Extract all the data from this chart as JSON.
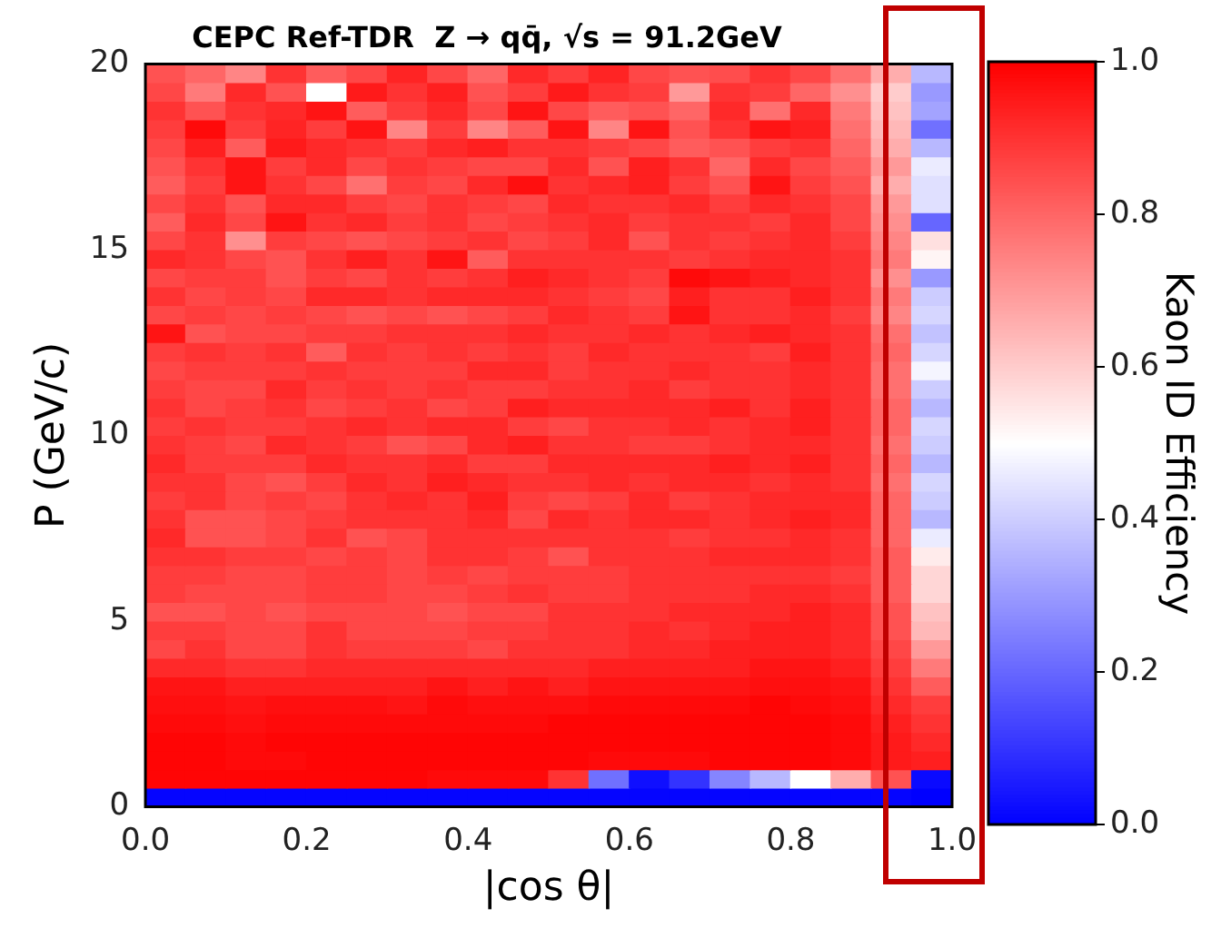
{
  "chart_data": {
    "type": "heatmap",
    "title": "CEPC Ref-TDR  Z → qq̄, √s = 91.2GeV",
    "xlabel": "|cos θ|",
    "ylabel": "P (GeV/c)",
    "clabel": "Kaon ID Efficiency",
    "xlim": [
      0,
      1
    ],
    "xticks": [
      {
        "value": 0,
        "label": "0.0"
      },
      {
        "value": 0.2,
        "label": "0.2"
      },
      {
        "value": 0.4,
        "label": "0.4"
      },
      {
        "value": 0.6,
        "label": "0.6"
      },
      {
        "value": 0.8,
        "label": "0.8"
      },
      {
        "value": 1,
        "label": "1.0"
      }
    ],
    "ylim": [
      0,
      20
    ],
    "yticks": [
      0,
      5,
      10,
      15,
      20
    ],
    "clim": [
      0,
      1
    ],
    "cticks": [
      {
        "value": 0,
        "label": "0.0"
      },
      {
        "value": 0.2,
        "label": "0.2"
      },
      {
        "value": 0.4,
        "label": "0.4"
      },
      {
        "value": 0.6,
        "label": "0.6"
      },
      {
        "value": 0.8,
        "label": "0.8"
      },
      {
        "value": 1,
        "label": "1.0"
      }
    ],
    "cells": [
      [
        0.84,
        0.8,
        0.74,
        0.9,
        0.82,
        0.86,
        0.93,
        0.86,
        0.8,
        0.92,
        0.88,
        0.93,
        0.86,
        0.84,
        0.85,
        0.9,
        0.86,
        0.78,
        0.66,
        0.36
      ],
      [
        0.86,
        0.76,
        0.92,
        0.84,
        0.5,
        0.95,
        0.9,
        0.94,
        0.84,
        0.88,
        0.95,
        0.9,
        0.88,
        0.7,
        0.9,
        0.88,
        0.8,
        0.72,
        0.6,
        0.3
      ],
      [
        0.9,
        0.84,
        0.9,
        0.92,
        0.96,
        0.82,
        0.88,
        0.92,
        0.86,
        0.96,
        0.86,
        0.82,
        0.84,
        0.8,
        0.92,
        0.78,
        0.92,
        0.76,
        0.62,
        0.32
      ],
      [
        0.88,
        0.98,
        0.88,
        0.93,
        0.88,
        0.96,
        0.74,
        0.88,
        0.74,
        0.82,
        0.96,
        0.74,
        0.96,
        0.84,
        0.9,
        0.96,
        0.94,
        0.78,
        0.64,
        0.22
      ],
      [
        0.86,
        0.94,
        0.82,
        0.95,
        0.92,
        0.9,
        0.88,
        0.92,
        0.94,
        0.9,
        0.9,
        0.88,
        0.86,
        0.82,
        0.84,
        0.88,
        0.9,
        0.8,
        0.66,
        0.36
      ],
      [
        0.84,
        0.9,
        0.96,
        0.88,
        0.92,
        0.86,
        0.9,
        0.88,
        0.86,
        0.86,
        0.92,
        0.84,
        0.94,
        0.9,
        0.8,
        0.92,
        0.86,
        0.82,
        0.7,
        0.46
      ],
      [
        0.82,
        0.88,
        0.96,
        0.9,
        0.86,
        0.78,
        0.88,
        0.86,
        0.92,
        0.97,
        0.9,
        0.92,
        0.94,
        0.88,
        0.84,
        0.96,
        0.88,
        0.84,
        0.66,
        0.44
      ],
      [
        0.86,
        0.9,
        0.84,
        0.92,
        0.92,
        0.88,
        0.86,
        0.9,
        0.88,
        0.86,
        0.92,
        0.9,
        0.9,
        0.92,
        0.88,
        0.92,
        0.9,
        0.86,
        0.7,
        0.44
      ],
      [
        0.82,
        0.92,
        0.86,
        0.96,
        0.9,
        0.92,
        0.88,
        0.9,
        0.86,
        0.88,
        0.9,
        0.92,
        0.88,
        0.9,
        0.9,
        0.88,
        0.92,
        0.86,
        0.72,
        0.2
      ],
      [
        0.86,
        0.9,
        0.72,
        0.88,
        0.86,
        0.84,
        0.86,
        0.88,
        0.9,
        0.86,
        0.88,
        0.92,
        0.84,
        0.9,
        0.88,
        0.9,
        0.92,
        0.88,
        0.74,
        0.56
      ],
      [
        0.92,
        0.9,
        0.86,
        0.84,
        0.9,
        0.94,
        0.9,
        0.96,
        0.82,
        0.9,
        0.9,
        0.9,
        0.9,
        0.88,
        0.9,
        0.92,
        0.92,
        0.9,
        0.76,
        0.52
      ],
      [
        0.86,
        0.88,
        0.88,
        0.84,
        0.88,
        0.86,
        0.9,
        0.88,
        0.9,
        0.94,
        0.92,
        0.9,
        0.88,
        0.98,
        0.96,
        0.94,
        0.92,
        0.9,
        0.72,
        0.3
      ],
      [
        0.9,
        0.86,
        0.88,
        0.86,
        0.92,
        0.92,
        0.9,
        0.92,
        0.92,
        0.92,
        0.9,
        0.88,
        0.86,
        0.94,
        0.9,
        0.9,
        0.94,
        0.9,
        0.76,
        0.4
      ],
      [
        0.86,
        0.88,
        0.86,
        0.88,
        0.86,
        0.84,
        0.86,
        0.84,
        0.86,
        0.88,
        0.92,
        0.9,
        0.88,
        0.96,
        0.9,
        0.9,
        0.92,
        0.88,
        0.74,
        0.42
      ],
      [
        0.96,
        0.84,
        0.86,
        0.86,
        0.88,
        0.88,
        0.9,
        0.9,
        0.9,
        0.92,
        0.9,
        0.9,
        0.92,
        0.9,
        0.92,
        0.94,
        0.92,
        0.9,
        0.78,
        0.38
      ],
      [
        0.88,
        0.9,
        0.88,
        0.9,
        0.82,
        0.9,
        0.88,
        0.9,
        0.88,
        0.9,
        0.88,
        0.92,
        0.9,
        0.9,
        0.9,
        0.88,
        0.94,
        0.9,
        0.8,
        0.42
      ],
      [
        0.86,
        0.88,
        0.88,
        0.88,
        0.9,
        0.88,
        0.88,
        0.88,
        0.92,
        0.92,
        0.88,
        0.9,
        0.9,
        0.92,
        0.9,
        0.9,
        0.92,
        0.9,
        0.78,
        0.48
      ],
      [
        0.88,
        0.86,
        0.86,
        0.92,
        0.88,
        0.9,
        0.88,
        0.9,
        0.88,
        0.88,
        0.9,
        0.9,
        0.92,
        0.88,
        0.9,
        0.9,
        0.92,
        0.9,
        0.78,
        0.4
      ],
      [
        0.9,
        0.86,
        0.88,
        0.9,
        0.86,
        0.88,
        0.9,
        0.86,
        0.88,
        0.94,
        0.92,
        0.92,
        0.92,
        0.92,
        0.94,
        0.9,
        0.94,
        0.9,
        0.8,
        0.36
      ],
      [
        0.88,
        0.9,
        0.88,
        0.88,
        0.9,
        0.92,
        0.9,
        0.92,
        0.92,
        0.88,
        0.86,
        0.9,
        0.9,
        0.92,
        0.9,
        0.92,
        0.94,
        0.9,
        0.8,
        0.42
      ],
      [
        0.9,
        0.88,
        0.86,
        0.92,
        0.9,
        0.88,
        0.84,
        0.86,
        0.92,
        0.94,
        0.9,
        0.9,
        0.88,
        0.88,
        0.9,
        0.92,
        0.92,
        0.9,
        0.78,
        0.4
      ],
      [
        0.92,
        0.88,
        0.88,
        0.88,
        0.92,
        0.9,
        0.9,
        0.92,
        0.88,
        0.88,
        0.92,
        0.92,
        0.92,
        0.92,
        0.94,
        0.92,
        0.94,
        0.9,
        0.8,
        0.36
      ],
      [
        0.9,
        0.9,
        0.86,
        0.84,
        0.88,
        0.92,
        0.9,
        0.94,
        0.92,
        0.9,
        0.9,
        0.92,
        0.9,
        0.92,
        0.92,
        0.9,
        0.92,
        0.9,
        0.78,
        0.42
      ],
      [
        0.88,
        0.9,
        0.86,
        0.88,
        0.86,
        0.9,
        0.92,
        0.9,
        0.94,
        0.88,
        0.86,
        0.88,
        0.92,
        0.88,
        0.9,
        0.92,
        0.92,
        0.92,
        0.8,
        0.4
      ],
      [
        0.9,
        0.84,
        0.84,
        0.86,
        0.88,
        0.9,
        0.9,
        0.9,
        0.92,
        0.86,
        0.92,
        0.9,
        0.92,
        0.92,
        0.9,
        0.92,
        0.94,
        0.92,
        0.8,
        0.36
      ],
      [
        0.92,
        0.84,
        0.84,
        0.86,
        0.9,
        0.84,
        0.86,
        0.9,
        0.9,
        0.9,
        0.9,
        0.9,
        0.9,
        0.88,
        0.9,
        0.9,
        0.92,
        0.9,
        0.8,
        0.46
      ],
      [
        0.9,
        0.9,
        0.88,
        0.88,
        0.86,
        0.88,
        0.86,
        0.9,
        0.9,
        0.88,
        0.84,
        0.9,
        0.9,
        0.9,
        0.92,
        0.92,
        0.92,
        0.9,
        0.82,
        0.54
      ],
      [
        0.88,
        0.88,
        0.86,
        0.86,
        0.88,
        0.88,
        0.86,
        0.88,
        0.86,
        0.88,
        0.88,
        0.88,
        0.9,
        0.9,
        0.9,
        0.9,
        0.9,
        0.88,
        0.82,
        0.58
      ],
      [
        0.88,
        0.86,
        0.86,
        0.86,
        0.88,
        0.88,
        0.86,
        0.86,
        0.88,
        0.9,
        0.88,
        0.88,
        0.9,
        0.9,
        0.9,
        0.92,
        0.92,
        0.9,
        0.82,
        0.58
      ],
      [
        0.84,
        0.84,
        0.86,
        0.84,
        0.86,
        0.86,
        0.86,
        0.84,
        0.86,
        0.86,
        0.9,
        0.9,
        0.9,
        0.92,
        0.92,
        0.92,
        0.94,
        0.92,
        0.84,
        0.62
      ],
      [
        0.88,
        0.88,
        0.86,
        0.86,
        0.9,
        0.86,
        0.86,
        0.86,
        0.88,
        0.88,
        0.9,
        0.9,
        0.92,
        0.9,
        0.92,
        0.94,
        0.94,
        0.92,
        0.84,
        0.64
      ],
      [
        0.86,
        0.9,
        0.86,
        0.86,
        0.9,
        0.88,
        0.88,
        0.88,
        0.86,
        0.9,
        0.9,
        0.9,
        0.92,
        0.92,
        0.94,
        0.94,
        0.94,
        0.92,
        0.86,
        0.7
      ],
      [
        0.92,
        0.92,
        0.9,
        0.9,
        0.92,
        0.92,
        0.92,
        0.92,
        0.92,
        0.92,
        0.92,
        0.94,
        0.94,
        0.94,
        0.94,
        0.96,
        0.96,
        0.94,
        0.88,
        0.76
      ],
      [
        0.96,
        0.96,
        0.94,
        0.94,
        0.94,
        0.94,
        0.94,
        0.96,
        0.94,
        0.96,
        0.94,
        0.96,
        0.96,
        0.96,
        0.96,
        0.97,
        0.97,
        0.96,
        0.9,
        0.82
      ],
      [
        0.97,
        0.97,
        0.96,
        0.97,
        0.97,
        0.97,
        0.96,
        0.98,
        0.97,
        0.97,
        0.97,
        0.98,
        0.98,
        0.98,
        0.98,
        0.99,
        0.98,
        0.97,
        0.92,
        0.88
      ],
      [
        0.98,
        0.98,
        0.97,
        0.98,
        0.98,
        0.98,
        0.98,
        0.98,
        0.98,
        0.98,
        0.99,
        0.99,
        0.99,
        0.99,
        0.99,
        0.99,
        0.99,
        0.98,
        0.94,
        0.9
      ],
      [
        0.99,
        0.99,
        0.98,
        0.99,
        0.99,
        0.99,
        0.99,
        0.99,
        0.99,
        0.99,
        0.99,
        0.99,
        0.99,
        0.99,
        0.99,
        0.99,
        0.99,
        0.98,
        0.95,
        0.92
      ],
      [
        0.99,
        0.99,
        0.98,
        0.98,
        0.99,
        0.99,
        0.99,
        0.99,
        0.99,
        0.99,
        0.99,
        0.98,
        0.98,
        0.98,
        0.99,
        0.99,
        0.99,
        0.98,
        0.95,
        0.94
      ],
      [
        0.99,
        0.99,
        0.99,
        0.99,
        0.99,
        0.99,
        0.99,
        0.98,
        0.98,
        0.98,
        0.9,
        0.22,
        0.03,
        0.1,
        0.26,
        0.36,
        0.5,
        0.66,
        0.84,
        0.02
      ],
      [
        0.01,
        0.01,
        0.01,
        0.01,
        0.01,
        0.01,
        0.01,
        0.01,
        0.01,
        0.01,
        0.01,
        0.01,
        0.01,
        0.01,
        0.01,
        0.01,
        0.01,
        0.01,
        0.01,
        0.0
      ]
    ]
  }
}
